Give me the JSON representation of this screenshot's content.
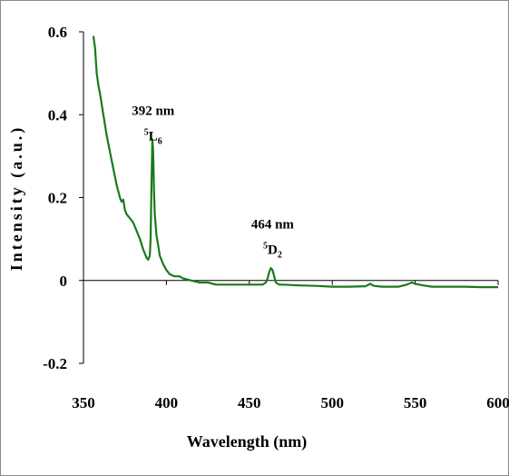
{
  "chart_data": {
    "type": "line",
    "title": "",
    "xlabel": "Wavelength (nm)",
    "ylabel": "Intensity (a.u.)",
    "xlim": [
      350,
      600
    ],
    "ylim": [
      -0.2,
      0.6
    ],
    "xticks": [
      350,
      400,
      450,
      500,
      550,
      600
    ],
    "xtick_labels": [
      "350",
      "400",
      "450",
      "500",
      "550",
      "600"
    ],
    "yticks": [
      -0.2,
      0,
      0.2,
      0.4,
      0.6
    ],
    "ytick_labels": [
      "-0.2",
      "0",
      "0.2",
      "0.4",
      "0.6"
    ],
    "grid": false,
    "line_color": "#1a7a1a",
    "series": [
      {
        "x": [
          356,
          357,
          358,
          359,
          360,
          362,
          364,
          366,
          368,
          370,
          372,
          373,
          374,
          375,
          376,
          378,
          380,
          382,
          384,
          386,
          388,
          389,
          390,
          390.5,
          391,
          391.5,
          392,
          392.5,
          393,
          394,
          395,
          396,
          398,
          400,
          402,
          405,
          408,
          410,
          415,
          420,
          425,
          430,
          440,
          450,
          455,
          458,
          460,
          461,
          462,
          463,
          464,
          465,
          466,
          468,
          470,
          480,
          490,
          500,
          510,
          520,
          523,
          525,
          530,
          540,
          545,
          548,
          550,
          555,
          560,
          570,
          580,
          590,
          600
        ],
        "y": [
          0.59,
          0.56,
          0.5,
          0.47,
          0.45,
          0.4,
          0.35,
          0.31,
          0.27,
          0.23,
          0.2,
          0.19,
          0.195,
          0.17,
          0.16,
          0.15,
          0.14,
          0.12,
          0.1,
          0.075,
          0.055,
          0.05,
          0.06,
          0.1,
          0.22,
          0.34,
          0.31,
          0.22,
          0.16,
          0.11,
          0.085,
          0.06,
          0.04,
          0.025,
          0.015,
          0.01,
          0.01,
          0.005,
          0.0,
          -0.005,
          -0.005,
          -0.01,
          -0.01,
          -0.01,
          -0.01,
          -0.01,
          -0.005,
          0.005,
          0.02,
          0.03,
          0.025,
          0.01,
          -0.005,
          -0.01,
          -0.01,
          -0.012,
          -0.013,
          -0.015,
          -0.015,
          -0.014,
          -0.008,
          -0.013,
          -0.015,
          -0.015,
          -0.01,
          -0.005,
          -0.008,
          -0.012,
          -0.015,
          -0.015,
          -0.015,
          -0.016,
          -0.016
        ]
      }
    ],
    "annotations": [
      {
        "id": "peak392",
        "value_text": "392 nm",
        "prefix": "5",
        "letter": "L",
        "sub": "6",
        "x": 392,
        "y": 0.4
      },
      {
        "id": "peak464",
        "value_text": "464 nm",
        "prefix": "5",
        "letter": "D",
        "sub": "2",
        "x": 464,
        "y": 0.125
      }
    ]
  }
}
